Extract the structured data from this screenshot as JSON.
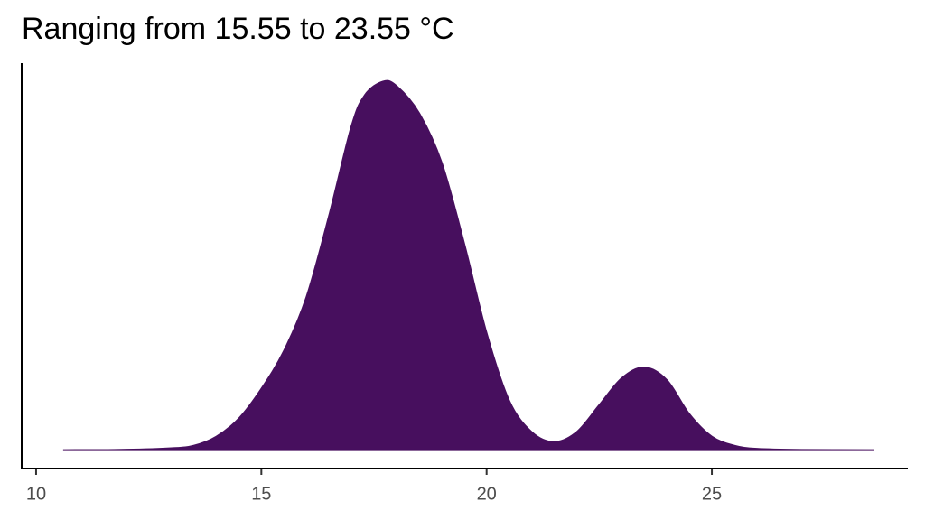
{
  "chart_data": {
    "type": "area",
    "title": "Ranging from 15.55 to 23.55 °C",
    "x": [
      10.6,
      12,
      13,
      13.5,
      14,
      14.5,
      15,
      15.5,
      16,
      16.5,
      17,
      17.3,
      17.7,
      18,
      18.5,
      19,
      19.5,
      20,
      20.5,
      21,
      21.5,
      22,
      22.5,
      23,
      23.5,
      24,
      24.5,
      25,
      25.5,
      26,
      27,
      28.6
    ],
    "values": [
      0,
      0.0002,
      0.001,
      0.0024,
      0.0073,
      0.0171,
      0.0332,
      0.0537,
      0.0829,
      0.1268,
      0.1756,
      0.1927,
      0.2,
      0.1976,
      0.1829,
      0.1561,
      0.1122,
      0.0634,
      0.0268,
      0.0098,
      0.0044,
      0.0098,
      0.0244,
      0.039,
      0.0449,
      0.038,
      0.0195,
      0.0073,
      0.0024,
      0.0007,
      0.0001,
      0
    ],
    "color": "#470f5e",
    "xlim": [
      9.68,
      29.35
    ],
    "ylim": [
      -0.01,
      0.21
    ],
    "xticks": [
      10,
      15,
      20,
      25
    ]
  }
}
